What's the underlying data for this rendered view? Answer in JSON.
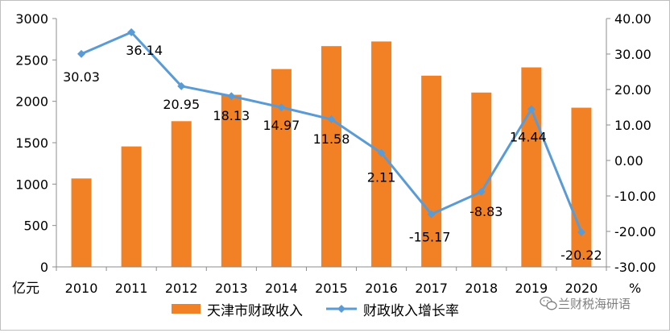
{
  "chart_data": {
    "type": "bar",
    "categories": [
      "2010",
      "2011",
      "2012",
      "2013",
      "2014",
      "2015",
      "2016",
      "2017",
      "2018",
      "2019",
      "2020"
    ],
    "series": [
      {
        "name": "天津市财政收入",
        "type": "bar",
        "axis": "left",
        "color": "#F28024",
        "values": [
          1068,
          1455,
          1760,
          2079,
          2390,
          2667,
          2723,
          2310,
          2106,
          2410,
          1923
        ]
      },
      {
        "name": "财政收入增长率",
        "type": "line",
        "axis": "right",
        "color": "#5B9BD5",
        "marker": "diamond",
        "values": [
          30.03,
          36.14,
          20.95,
          18.13,
          14.97,
          11.58,
          2.11,
          -15.17,
          -8.83,
          14.44,
          -20.22
        ],
        "labels": [
          "30.03",
          "36.14",
          "20.95",
          "18.13",
          "14.97",
          "11.58",
          "2.11",
          "-15.17",
          "-8.83",
          "14.44",
          "-20.22"
        ]
      }
    ],
    "left_axis": {
      "unit": "亿元",
      "ylim": [
        0,
        3000
      ],
      "ticks": [
        0,
        500,
        1000,
        1500,
        2000,
        2500,
        3000
      ],
      "tick_labels": [
        "0",
        "500",
        "1000",
        "1500",
        "2000",
        "2500",
        "3000"
      ]
    },
    "right_axis": {
      "unit": "%",
      "ylim": [
        -30,
        40
      ],
      "ticks": [
        -30,
        -20,
        -10,
        0,
        10,
        20,
        30,
        40
      ],
      "tick_labels": [
        "-30.00",
        "-20.00",
        "-10.00",
        "0.00",
        "10.00",
        "20.00",
        "30.00",
        "40.00"
      ]
    },
    "grid": false,
    "legend_position": "bottom"
  },
  "watermark": {
    "text": "兰财税海研语",
    "icon": "wechat-icon"
  }
}
